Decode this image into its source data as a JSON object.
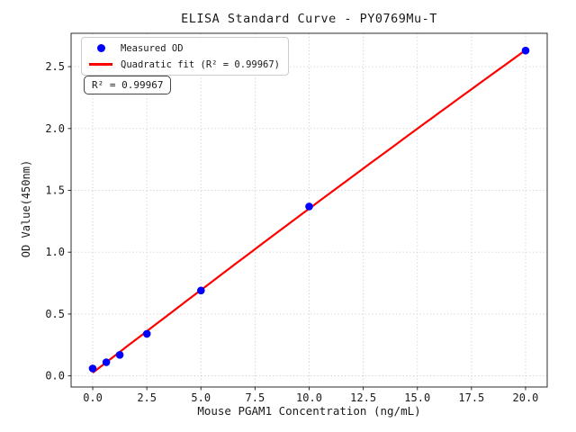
{
  "figure": {
    "title": "ELISA Standard Curve - PY0769Mu-T",
    "annotation": "R² = 0.99967"
  },
  "legend": {
    "items": [
      {
        "label": "Measured OD",
        "marker": "dot",
        "color": "#0000ff"
      },
      {
        "label": "Quadratic fit (R² = 0.99967)",
        "marker": "line",
        "color": "#ff0000"
      }
    ]
  },
  "chart_data": {
    "type": "scatter",
    "title": "ELISA Standard Curve - PY0769Mu-T",
    "xlabel": "Mouse PGAM1 Concentration (ng/mL)",
    "ylabel": "OD Value(450nm)",
    "x": [
      0,
      0.625,
      1.25,
      2.5,
      5,
      10,
      20
    ],
    "y": [
      0.06,
      0.11,
      0.17,
      0.34,
      0.69,
      1.37,
      2.63
    ],
    "series_name": "Measured OD",
    "fit": {
      "type": "quadratic",
      "label": "Quadratic fit",
      "r_squared": 0.99967
    },
    "xlim": [
      -1,
      21
    ],
    "ylim": [
      -0.09,
      2.77
    ],
    "xticks": [
      0,
      2.5,
      5,
      7.5,
      10,
      12.5,
      15,
      17.5,
      20
    ],
    "xtick_labels": [
      "0.0",
      "2.5",
      "5.0",
      "7.5",
      "10.0",
      "12.5",
      "15.0",
      "17.5",
      "20.0"
    ],
    "yticks": [
      0,
      0.5,
      1,
      1.5,
      2,
      2.5
    ],
    "ytick_labels": [
      "0.0",
      "0.5",
      "1.0",
      "1.5",
      "2.0",
      "2.5"
    ],
    "grid": true,
    "legend_position": "upper left",
    "colors": {
      "points": "#0000ff",
      "fit_line": "#ff0000",
      "grid": "#cccccc",
      "spine": "#2b2b2b"
    }
  }
}
